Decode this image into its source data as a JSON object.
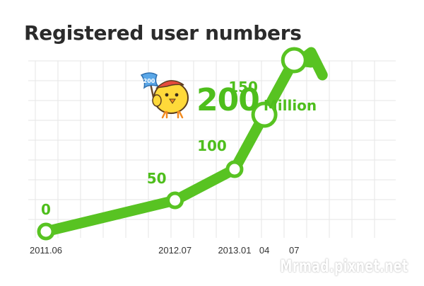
{
  "title": "Registered user numbers",
  "callout": {
    "value": "200",
    "unit": "Million",
    "flag_text": "200"
  },
  "watermark": "Mrmad.pixnet.net",
  "colors": {
    "line": "#58c322",
    "label": "#4ebe1c",
    "grid": "#e6e6e6",
    "text": "#333333"
  },
  "chart_data": {
    "type": "line",
    "title": "Registered user numbers",
    "x_tick_labels": [
      "2011.06",
      "2012.07",
      "2013.01",
      "04",
      "07"
    ],
    "series": [
      {
        "points": [
          {
            "x": "2011.06",
            "y": 0,
            "label": "0"
          },
          {
            "x": "2012.07",
            "y": 50,
            "label": "50"
          },
          {
            "x": "2013.01",
            "y": 100,
            "label": "100"
          },
          {
            "x": "2013.04",
            "y": 150,
            "label": "150"
          },
          {
            "x": "2013.07",
            "y": 200,
            "label": ""
          }
        ]
      }
    ],
    "unit": "Million",
    "grid": true,
    "trend_arrow": true
  }
}
